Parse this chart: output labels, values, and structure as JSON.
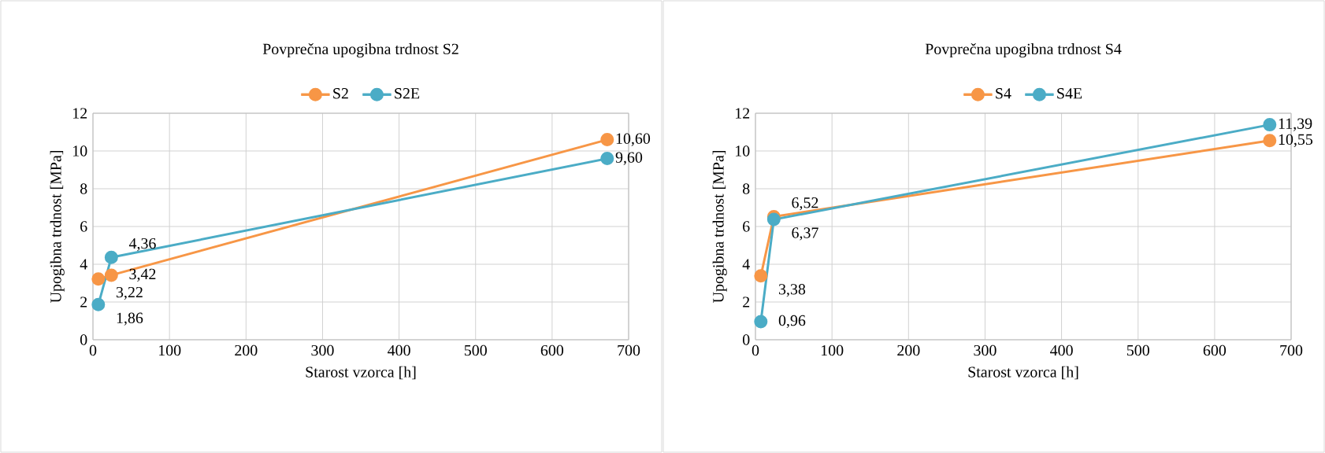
{
  "chart_data": [
    {
      "type": "line",
      "title": "Povprečna upogibna trdnost S2",
      "xlabel": "Starost vzorca [h]",
      "ylabel": "Upogibna trdnost [MPa]",
      "x": [
        7,
        24,
        672
      ],
      "xlim": [
        0,
        700
      ],
      "xticks": [
        0,
        100,
        200,
        300,
        400,
        500,
        600,
        700
      ],
      "ylim": [
        0,
        12
      ],
      "yticks": [
        0,
        2,
        4,
        6,
        8,
        10,
        12
      ],
      "grid": true,
      "legend": "top",
      "marker": "circle",
      "line_style": "solid",
      "series": [
        {
          "name": "S2",
          "color": "#f79646",
          "values": [
            3.22,
            3.42,
            10.6
          ],
          "value_labels": [
            "3,22",
            "3,42",
            "10,60"
          ]
        },
        {
          "name": "S2E",
          "color": "#4bacc6",
          "values": [
            1.86,
            4.36,
            9.6
          ],
          "value_labels": [
            "1,86",
            "4,36",
            "9,60"
          ]
        }
      ]
    },
    {
      "type": "line",
      "title": "Povprečna upogibna trdnost S4",
      "xlabel": "Starost vzorca [h]",
      "ylabel": "Upogibna trdnost [MPa]",
      "x": [
        7,
        24,
        672
      ],
      "xlim": [
        0,
        700
      ],
      "xticks": [
        0,
        100,
        200,
        300,
        400,
        500,
        600,
        700
      ],
      "ylim": [
        0,
        12
      ],
      "yticks": [
        0,
        2,
        4,
        6,
        8,
        10,
        12
      ],
      "grid": true,
      "legend": "top",
      "marker": "circle",
      "line_style": "solid",
      "series": [
        {
          "name": "S4",
          "color": "#f79646",
          "values": [
            3.38,
            6.52,
            10.55
          ],
          "value_labels": [
            "3,38",
            "6,52",
            "10,55"
          ]
        },
        {
          "name": "S4E",
          "color": "#4bacc6",
          "values": [
            0.96,
            6.37,
            11.39
          ],
          "value_labels": [
            "0,96",
            "6,37",
            "11,39"
          ]
        }
      ]
    }
  ]
}
